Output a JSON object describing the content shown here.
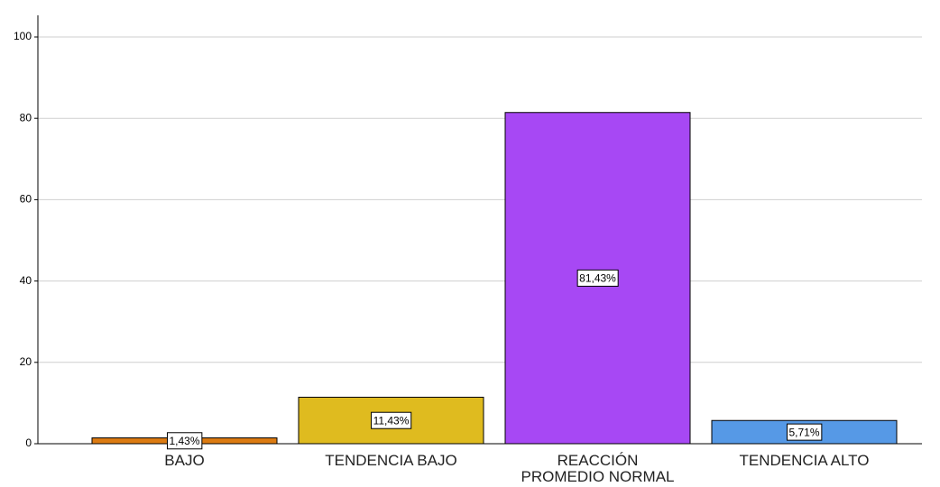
{
  "chart_data": {
    "type": "bar",
    "categories": [
      "BAJO",
      "TENDENCIA BAJO",
      "REACCIÓN\nPROMEDIO NORMAL",
      "TENDENCIA ALTO"
    ],
    "values": [
      1.43,
      11.43,
      81.43,
      5.71
    ],
    "value_labels": [
      "1,43%",
      "11,43%",
      "81,43%",
      "5,71%"
    ],
    "colors": [
      "#dc7b12",
      "#dfbb1f",
      "#a748f4",
      "#5699e6"
    ],
    "ylim": [
      0,
      100
    ],
    "yticks": [
      0,
      20,
      40,
      60,
      80,
      100
    ],
    "grid": true
  }
}
